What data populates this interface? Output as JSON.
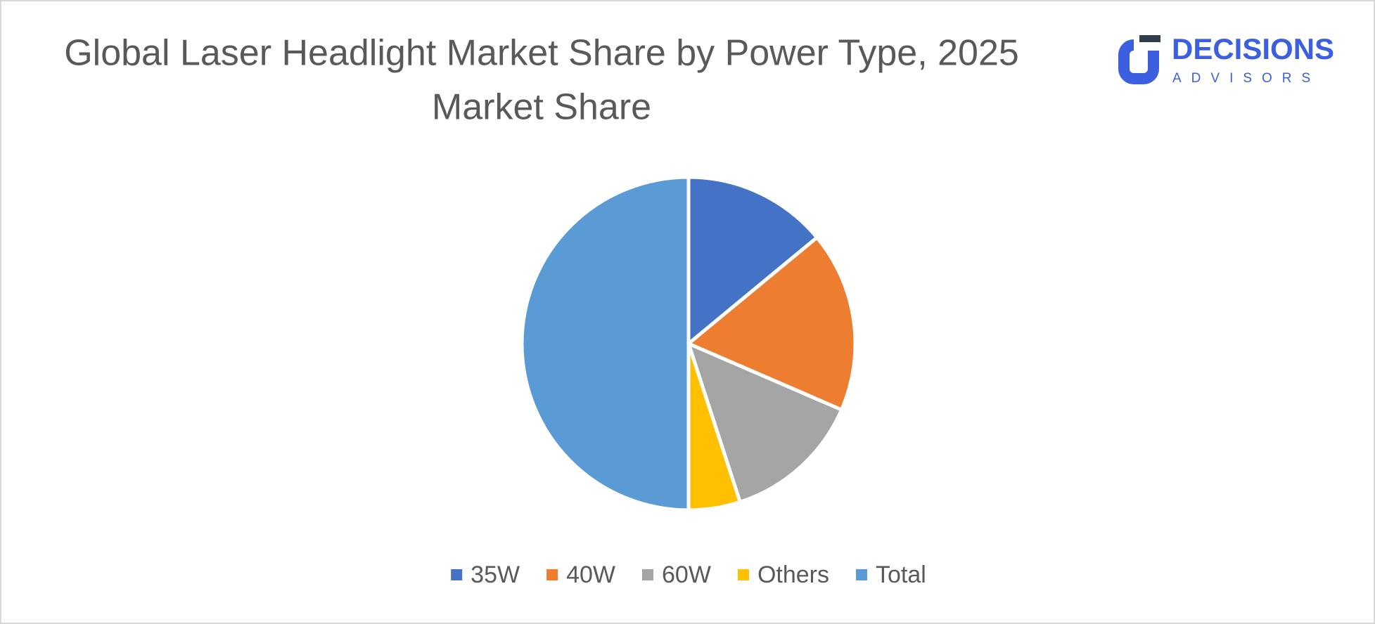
{
  "chart_data": {
    "type": "pie",
    "title": "Global Laser Headlight Market Share by Power Type, 2025",
    "subtitle": "Market Share",
    "categories": [
      "35W",
      "40W",
      "60W",
      "Others",
      "Total"
    ],
    "values": [
      14,
      17.5,
      13.5,
      5,
      50
    ],
    "colors": [
      "#4472c4",
      "#ed7d31",
      "#a5a5a5",
      "#ffc000",
      "#5b9bd5"
    ],
    "legend": "bottom"
  },
  "logo": {
    "name": "DECISIONS",
    "tagline": "ADVISORS"
  }
}
